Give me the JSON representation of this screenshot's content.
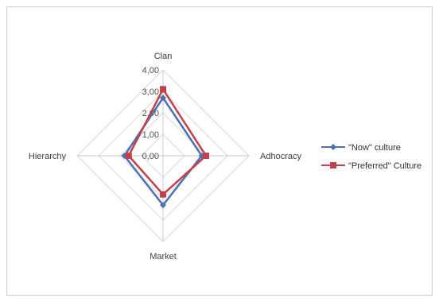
{
  "chart_data": {
    "type": "radar",
    "categories": [
      "Clan",
      "Adhocracy",
      "Market",
      "Hierarchy"
    ],
    "ticks": [
      "0,00",
      "1,00",
      "2,00",
      "3,00",
      "4,00"
    ],
    "rmax": 4,
    "series": [
      {
        "name": "\"Now\" culture",
        "color": "#4a72b5",
        "values": [
          2.7,
          1.8,
          2.3,
          1.8
        ]
      },
      {
        "name": "\"Preferred\" Culture",
        "color": "#c2414b",
        "values": [
          3.1,
          2.0,
          1.8,
          1.6
        ]
      }
    ],
    "legend_position": "right",
    "grid": true
  }
}
